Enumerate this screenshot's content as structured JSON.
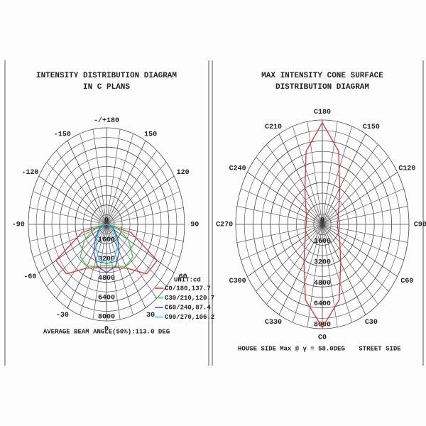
{
  "chart_data": [
    {
      "type": "polar",
      "title": [
        "INTENSITY DISTRIBUTION DIAGRAM",
        "IN C PLANS"
      ],
      "rlim": [
        0,
        8000
      ],
      "rticks": [
        0,
        1600,
        3200,
        4800,
        6400,
        8000
      ],
      "angle_ticks": [
        {
          "value": 180,
          "label": "-/+180"
        },
        -150,
        150,
        -120,
        120,
        -90,
        90,
        -60,
        60,
        -30,
        30,
        0
      ],
      "unit": "UNIT:cd",
      "note": "AVERAGE BEAM ANGLE(50%):113.0 DEG",
      "theta": [
        -90,
        -75,
        -60,
        -45,
        -30,
        -15,
        0,
        15,
        30,
        45,
        60,
        75,
        90
      ],
      "closed": false,
      "series": [
        {
          "name": "C0/180,137.7",
          "color": "#e8312f",
          "values": [
            0,
            2600,
            6000,
            5800,
            4200,
            3700,
            3600,
            3700,
            4200,
            5800,
            6000,
            2600,
            0
          ]
        },
        {
          "name": "C30/210,120.7",
          "color": "#35c93b",
          "values": [
            0,
            1200,
            2600,
            3800,
            4000,
            3600,
            3400,
            3600,
            4000,
            3800,
            2600,
            1200,
            0
          ]
        },
        {
          "name": "C60/240,87.4",
          "color": "#3a4bd6",
          "values": [
            0,
            400,
            900,
            1600,
            2600,
            3600,
            4000,
            3600,
            2600,
            1600,
            900,
            400,
            0
          ]
        },
        {
          "name": "C90/270,106.2",
          "color": "#27c9d8",
          "values": [
            0,
            300,
            700,
            1300,
            2200,
            3000,
            3300,
            3000,
            2200,
            1300,
            700,
            300,
            0
          ]
        }
      ]
    },
    {
      "type": "polar",
      "title": [
        "MAX INTENSITY CONE SURFACE",
        "DISTRIBUTION DIAGRAM"
      ],
      "rlim": [
        0,
        8000
      ],
      "rticks": [
        0,
        1600,
        3200,
        4800,
        6400,
        8000
      ],
      "angle_ticks": [
        {
          "value": 180,
          "label": "C180"
        },
        {
          "value": 210,
          "label": "C210"
        },
        {
          "value": 150,
          "label": "C150"
        },
        {
          "value": 240,
          "label": "C240"
        },
        {
          "value": 120,
          "label": "C120"
        },
        {
          "value": 270,
          "label": "C270"
        },
        {
          "value": 90,
          "label": "C90"
        },
        {
          "value": 300,
          "label": "C300"
        },
        {
          "value": 60,
          "label": "C60"
        },
        {
          "value": 330,
          "label": "C330"
        },
        {
          "value": 30,
          "label": "C30"
        },
        {
          "value": 0,
          "label": "C0"
        }
      ],
      "footer": [
        "HOUSE SIDE",
        "Max @ γ = 58.0DEG",
        "STREET SIDE"
      ],
      "theta": [
        0,
        15,
        30,
        45,
        60,
        75,
        90,
        105,
        120,
        135,
        150,
        165,
        180,
        195,
        210,
        225,
        240,
        255,
        270,
        285,
        300,
        315,
        330,
        345
      ],
      "closed": true,
      "series": [
        {
          "color": "#e8312f",
          "values": [
            7900,
            6000,
            3400,
            2300,
            1800,
            1500,
            1400,
            1500,
            1700,
            2200,
            3200,
            5800,
            7800,
            5800,
            3200,
            2200,
            1700,
            1500,
            1500,
            1600,
            1800,
            2300,
            3400,
            6000
          ]
        }
      ]
    }
  ]
}
